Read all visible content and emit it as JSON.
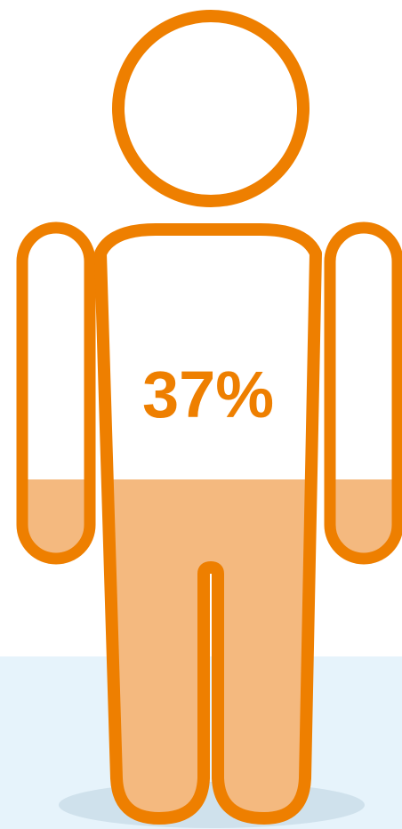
{
  "figure": {
    "percentage_label": "37%",
    "fill_fraction": 0.37,
    "colors": {
      "outline": "#EE7F00",
      "fill": "#F4B97F",
      "background_floor": "#E6F3FB",
      "shadow": "#CFE1EC",
      "text": "#EE7F00"
    }
  }
}
